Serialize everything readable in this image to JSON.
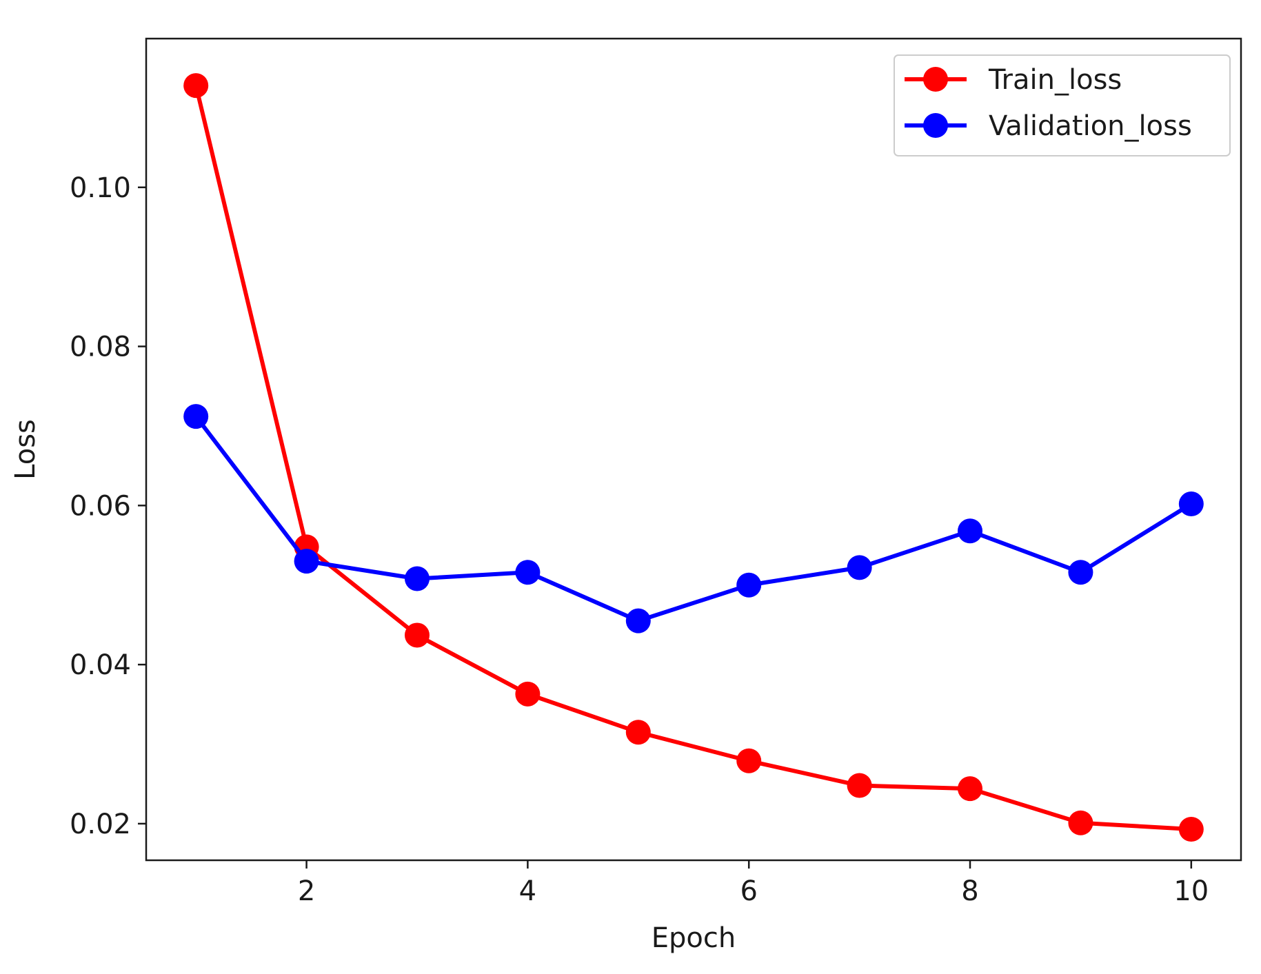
{
  "chart_data": {
    "type": "line",
    "title": "",
    "xlabel": "Epoch",
    "ylabel": "Loss",
    "x": [
      1,
      2,
      3,
      4,
      5,
      6,
      7,
      8,
      9,
      10
    ],
    "xlim": [
      0.55,
      10.45
    ],
    "ylim": [
      0.0154,
      0.1187
    ],
    "xticks": [
      2,
      4,
      6,
      8,
      10
    ],
    "xtick_labels": [
      "2",
      "4",
      "6",
      "8",
      "10"
    ],
    "yticks": [
      0.02,
      0.04,
      0.06,
      0.08,
      0.1
    ],
    "ytick_labels": [
      "0.02",
      "0.04",
      "0.06",
      "0.08",
      "0.10"
    ],
    "grid": false,
    "legend_position": "top-right",
    "series": [
      {
        "name": "Train_loss",
        "color": "#ff0000",
        "marker": "circle",
        "values": [
          0.1128,
          0.0548,
          0.0437,
          0.0363,
          0.0315,
          0.0279,
          0.0248,
          0.0244,
          0.0201,
          0.0193
        ]
      },
      {
        "name": "Validation_loss",
        "color": "#0000ff",
        "marker": "circle",
        "values": [
          0.0712,
          0.053,
          0.0508,
          0.0516,
          0.0455,
          0.05,
          0.0522,
          0.0568,
          0.0516,
          0.0602
        ]
      }
    ]
  }
}
